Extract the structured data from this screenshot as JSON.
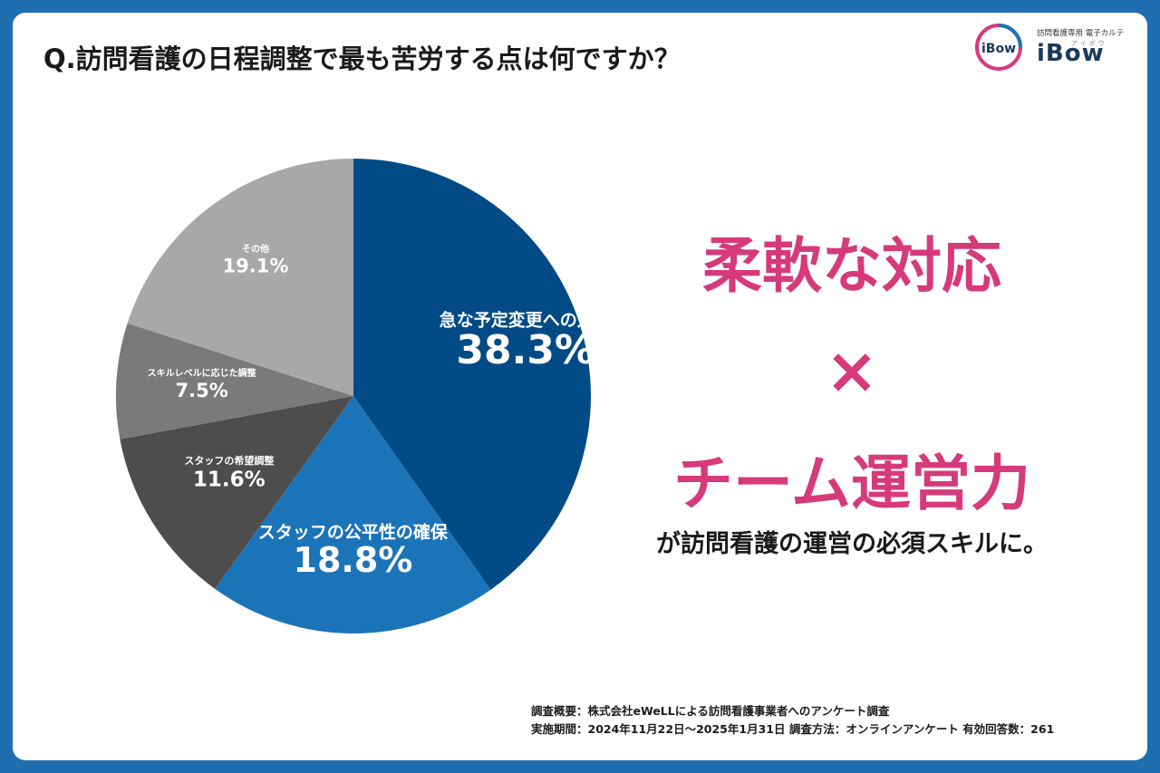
{
  "question": "Q.訪問看護の日程調整で最も苦労する点は何ですか？",
  "logo": {
    "badge": "iBow",
    "subtitle": "訪問看護専用 電子カルテ",
    "kana": "アイボウ",
    "word": "iBow"
  },
  "chart_data": {
    "type": "pie",
    "title": "",
    "slices": [
      {
        "label": "急な予定変更への対応",
        "value": 38.3,
        "value_label": "38.3%",
        "color": "#004b85"
      },
      {
        "label": "スタッフの公平性の確保",
        "value": 18.8,
        "value_label": "18.8%",
        "color": "#1c74b8"
      },
      {
        "label": "スタッフの希望調整",
        "value": 11.6,
        "value_label": "11.6%",
        "color": "#4d4d4d"
      },
      {
        "label": "スキルレベルに応じた調整",
        "value": 7.5,
        "value_label": "7.5%",
        "color": "#7a7a7a"
      },
      {
        "label": "その他",
        "value": 19.1,
        "value_label": "19.1%",
        "color": "#a8a8a8"
      }
    ]
  },
  "headline": {
    "line1": "柔軟な対応",
    "cross": "×",
    "line2": "チーム運営力",
    "tagline": "が訪問看護の運営の必須スキルに。"
  },
  "survey": {
    "overview": "調査概要：株式会社eWeLLによる訪問看護事業者へのアンケート調査",
    "period": "実施期間：2024年11月22日～2025年1月31日  調査方法：オンラインアンケート 有効回答数：261"
  }
}
